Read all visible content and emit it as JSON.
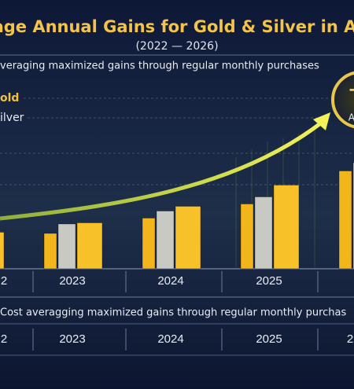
{
  "chart_data": {
    "type": "bar",
    "title": "rage Annual Gains for Gold & Silver in AU",
    "subtitle": "(2022 — 2026)",
    "description": "veraging maximized gains through regular monthly purchases",
    "categories": [
      "2",
      "2023",
      "2024",
      "2025",
      null
    ],
    "series": [
      {
        "name": "old",
        "color": "#f2b51c",
        "values": [
          null,
          30,
          43,
          55,
          83
        ]
      },
      {
        "name": "ilver",
        "color": "#c9c9c4",
        "values": [
          null,
          38,
          49,
          61,
          90
        ]
      },
      {
        "color": "#f7c12a",
        "values": [
          31,
          39,
          53,
          71,
          null
        ]
      }
    ],
    "ylim": [
      0,
      100
    ],
    "badge": {
      "symbol": "+",
      "text": "Av"
    },
    "footer": "Cost averagging maximized gains through regular monthly purchas",
    "footer_years": [
      "2",
      "2023",
      "2024",
      "2025",
      "2"
    ]
  }
}
